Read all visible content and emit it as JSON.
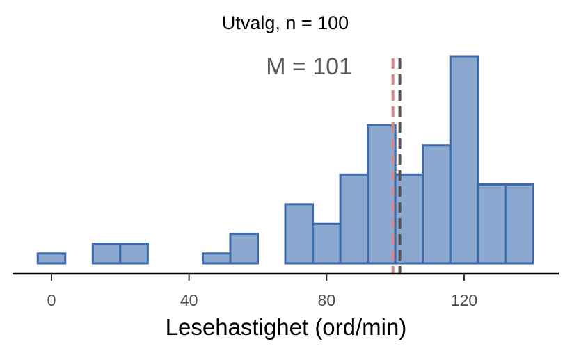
{
  "chart_data": {
    "type": "bar",
    "subtype": "histogram",
    "title": "Utvalg, n = 100",
    "xlabel": "Lesehastighet (ord/min)",
    "ylabel": "",
    "annotation": "M = 101",
    "bin_width": 8,
    "bins": [
      {
        "start": -4,
        "end": 4,
        "count": 1
      },
      {
        "start": 4,
        "end": 12,
        "count": 0
      },
      {
        "start": 12,
        "end": 20,
        "count": 2
      },
      {
        "start": 20,
        "end": 28,
        "count": 2
      },
      {
        "start": 28,
        "end": 36,
        "count": 0
      },
      {
        "start": 36,
        "end": 44,
        "count": 0
      },
      {
        "start": 44,
        "end": 52,
        "count": 1
      },
      {
        "start": 52,
        "end": 60,
        "count": 3
      },
      {
        "start": 60,
        "end": 68,
        "count": 0
      },
      {
        "start": 68,
        "end": 76,
        "count": 6
      },
      {
        "start": 76,
        "end": 84,
        "count": 4
      },
      {
        "start": 84,
        "end": 92,
        "count": 9
      },
      {
        "start": 92,
        "end": 100,
        "count": 14
      },
      {
        "start": 100,
        "end": 108,
        "count": 9
      },
      {
        "start": 108,
        "end": 116,
        "count": 12
      },
      {
        "start": 116,
        "end": 124,
        "count": 21
      },
      {
        "start": 124,
        "end": 132,
        "count": 8
      },
      {
        "start": 132,
        "end": 140,
        "count": 8
      }
    ],
    "xlim": [
      -8,
      147
    ],
    "ylim": [
      0,
      22
    ],
    "x_ticks": [
      0,
      40,
      80,
      120
    ],
    "x_tick_labels": [
      "0",
      "40",
      "80",
      "120"
    ],
    "reference_lines": [
      {
        "x": 99.3,
        "style": "dashed",
        "color": "#d08a8a"
      },
      {
        "x": 101.3,
        "style": "dashed",
        "color": "#555555"
      }
    ],
    "grid": false,
    "bar_fill": "#8aa8d0",
    "bar_stroke": "#3d6aa8"
  }
}
